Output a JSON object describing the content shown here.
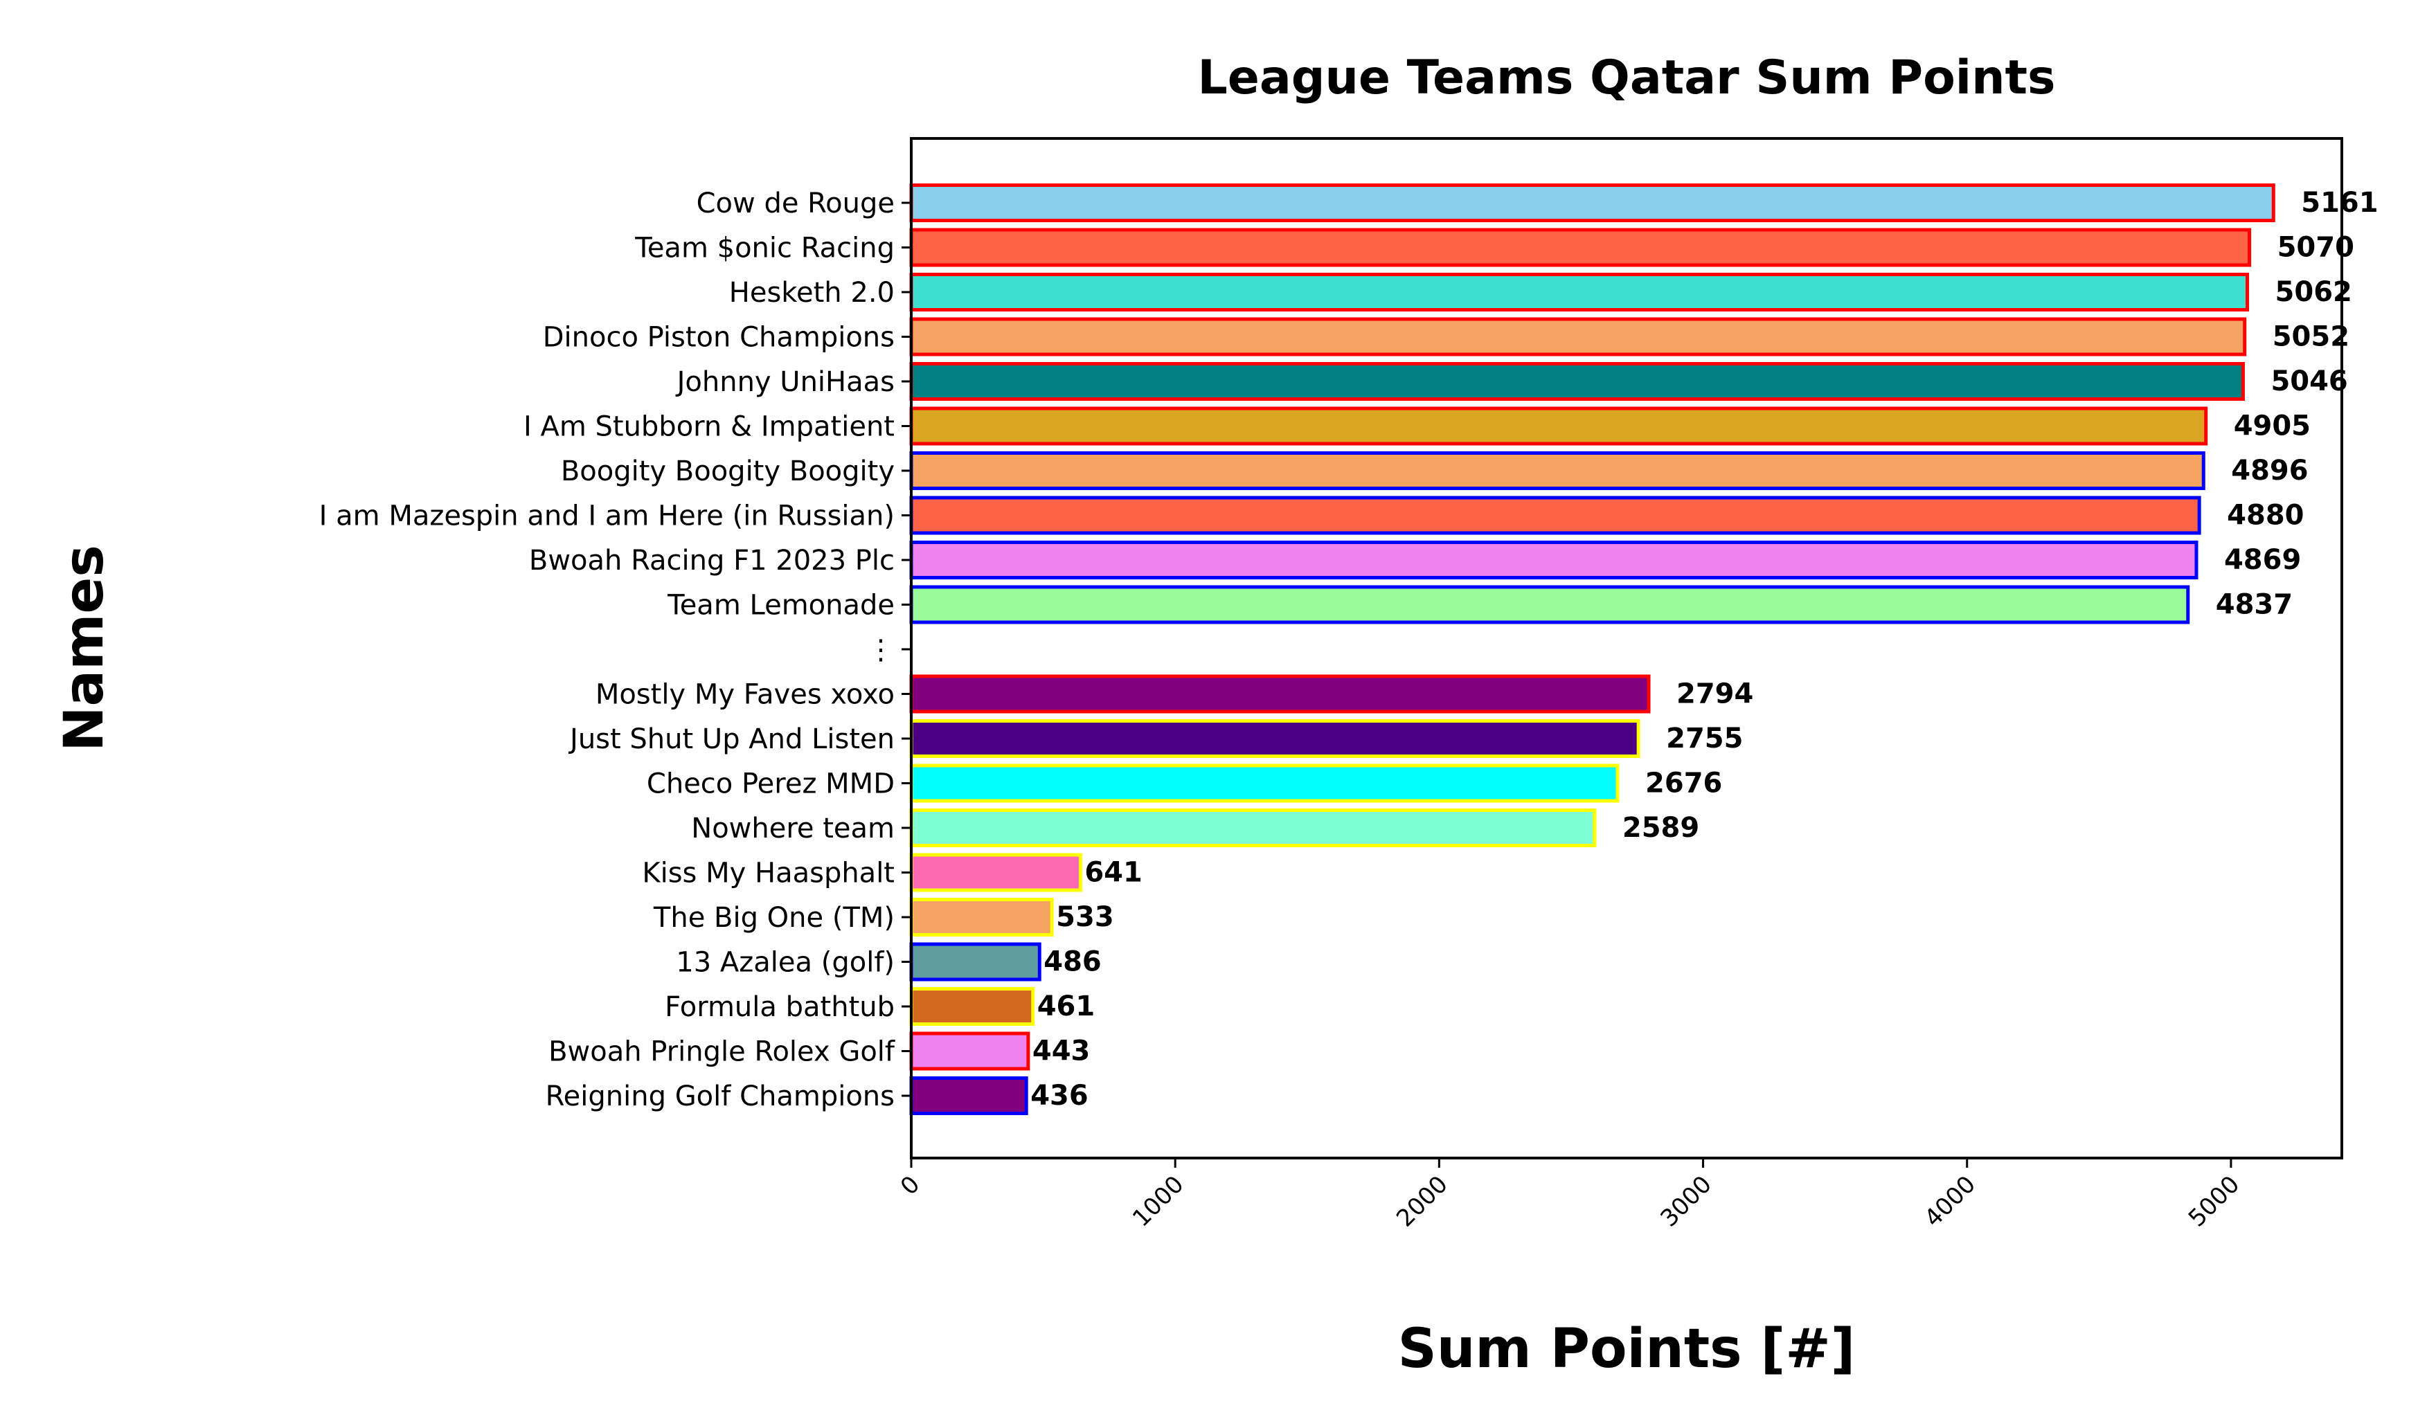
{
  "chart_data": {
    "type": "bar",
    "orientation": "horizontal",
    "title": "League Teams Qatar Sum Points",
    "xlabel": "Sum Points [#]",
    "ylabel": "Names",
    "xlim": [
      0,
      5420
    ],
    "xticks": [
      "0",
      "1000",
      "2000",
      "3000",
      "4000",
      "5000"
    ],
    "xtick_values": [
      0,
      1000,
      2000,
      3000,
      4000,
      5000
    ],
    "grid": false,
    "legend": "none",
    "categories": [
      "Cow de Rouge",
      "Team $onic Racing",
      "Hesketh 2.0",
      "Dinoco Piston Champions",
      "Johnny UniHaas",
      "I Am Stubborn & Impatient",
      "Boogity Boogity Boogity",
      "I am Mazespin and I am Here (in Russian)",
      "Bwoah Racing F1 2023 Plc",
      "Team Lemonade",
      "⋮",
      "Mostly My Faves xoxo",
      "Just Shut Up And Listen",
      "Checo Perez MMD",
      "Nowhere team",
      "Kiss My Haasphalt",
      "The Big One (TM)",
      "13 Azalea (golf)",
      "Formula bathtub",
      "Bwoah Pringle Rolex Golf",
      "Reigning Golf Champions"
    ],
    "values": [
      5161,
      5070,
      5062,
      5052,
      5046,
      4905,
      4896,
      4880,
      4869,
      4837,
      null,
      2794,
      2755,
      2676,
      2589,
      641,
      533,
      486,
      461,
      443,
      436
    ],
    "value_labels": [
      "5161",
      "5070",
      "5062",
      "5052",
      "5046",
      "4905",
      "4896",
      "4880",
      "4869",
      "4837",
      "",
      "2794",
      "2755",
      "2676",
      "2589",
      "641",
      "533",
      "486",
      "461",
      "443",
      "436"
    ],
    "fill_colors": [
      "#87CEEB",
      "#FF6347",
      "#40E0D0",
      "#F4A460",
      "#008080",
      "#DAA520",
      "#F4A460",
      "#FF6347",
      "#EE82EE",
      "#98FB98",
      "",
      "#800080",
      "#4B0082",
      "#00FFFF",
      "#7FFFD4",
      "#FF69B4",
      "#F4A460",
      "#5F9EA0",
      "#D2691E",
      "#EE82EE",
      "#800080"
    ],
    "edge_colors": [
      "#FF0000",
      "#FF0000",
      "#FF0000",
      "#FF0000",
      "#FF0000",
      "#FF0000",
      "#0000FF",
      "#0000FF",
      "#0000FF",
      "#0000FF",
      "",
      "#FF0000",
      "#FFFF00",
      "#FFFF00",
      "#FFFF00",
      "#FFFF00",
      "#FFFF00",
      "#0000FF",
      "#FFFF00",
      "#FF0000",
      "#0000FF"
    ]
  }
}
